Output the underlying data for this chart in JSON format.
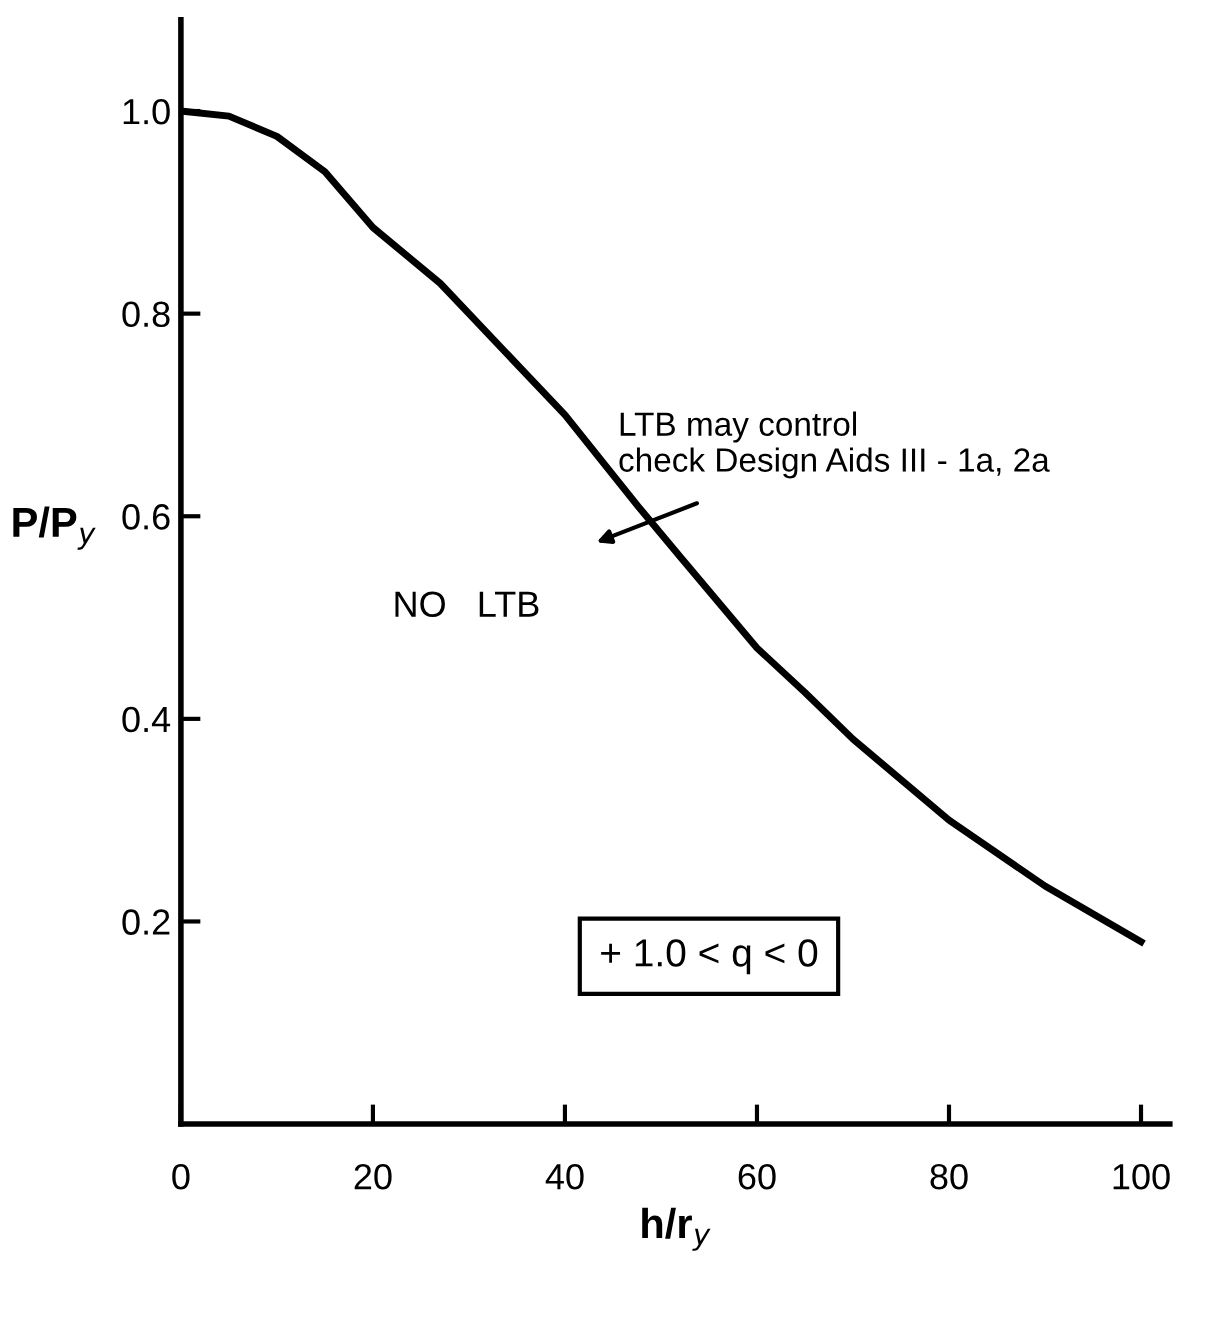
{
  "chart_data": {
    "type": "line",
    "xlabel": "h/r$_{y}$",
    "ylabel": "P/P$_{y}$",
    "x": [
      0,
      5,
      10,
      15,
      20,
      27,
      30,
      40,
      47.6,
      52,
      60,
      65,
      70,
      80,
      90,
      100
    ],
    "series": [
      {
        "color": "#000000",
        "values": [
          1.0,
          0.995,
          0.975,
          0.94,
          0.885,
          0.83,
          0.8,
          0.7,
          0.61,
          0.56,
          0.47,
          0.426,
          0.38,
          0.3,
          0.235,
          0.18
        ]
      }
    ],
    "xlim": [
      0,
      103
    ],
    "ylim": [
      0,
      1.09
    ],
    "xticks": [
      0,
      20,
      40,
      60,
      80,
      100
    ],
    "yticks": [
      0.2,
      0.4,
      0.6,
      0.8,
      {
        "value": 1.0,
        "label": "1.0"
      }
    ],
    "annotations": [
      "LTB may control\ncheck Design Aids III - 1a, 2a",
      "NO   LTB",
      "+ 1.0 < q < 0"
    ],
    "grid": false,
    "legend": false,
    "marker": "none",
    "line_style": "solid"
  }
}
